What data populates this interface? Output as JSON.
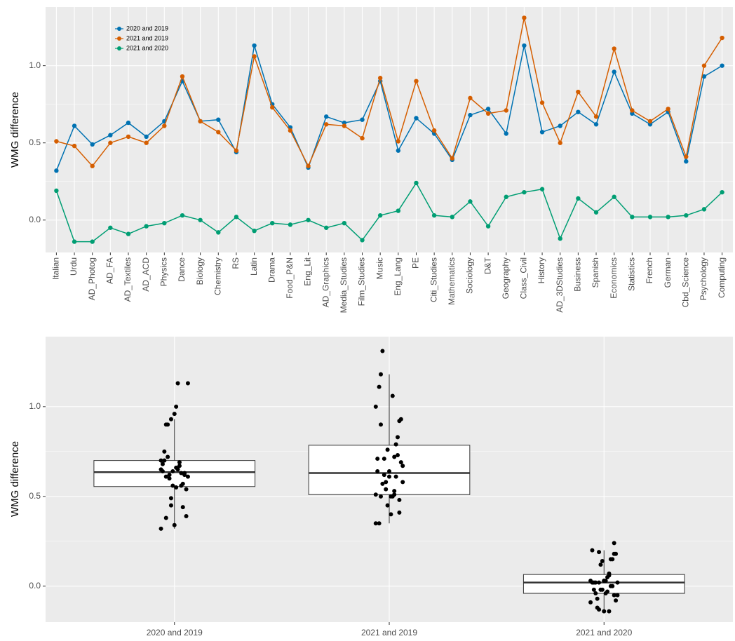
{
  "chart_data": [
    {
      "type": "line",
      "ylabel": "WMG difference",
      "categories": [
        "Italian",
        "Urdu",
        "AD_Photog",
        "AD_FA",
        "AD_Textiles",
        "AD_ACD",
        "Physics",
        "Dance",
        "Biology",
        "Chemistry",
        "RS",
        "Latin",
        "Drama",
        "Food_P&N",
        "Eng_Lit",
        "AD_Graphics",
        "Media_Studies",
        "Film_Studies",
        "Music",
        "Eng_Lang",
        "PE",
        "Citi_Studies",
        "Mathematics",
        "Sociology",
        "D&T",
        "Geography",
        "Class_Civil",
        "History",
        "AD_3DStudies",
        "Business",
        "Spanish",
        "Economics",
        "Statistics",
        "French",
        "German",
        "Cbd_Science",
        "Psychology",
        "Computing"
      ],
      "series": [
        {
          "name": "2020 and 2019",
          "color": "#0072B2",
          "values": [
            0.32,
            0.61,
            0.49,
            0.55,
            0.63,
            0.54,
            0.64,
            0.9,
            0.64,
            0.65,
            0.44,
            1.13,
            0.75,
            0.6,
            0.34,
            0.67,
            0.63,
            0.65,
            0.9,
            0.45,
            0.66,
            0.56,
            0.39,
            0.68,
            0.72,
            0.56,
            1.13,
            0.57,
            0.61,
            0.7,
            0.62,
            0.96,
            0.69,
            0.62,
            0.7,
            0.38,
            0.93,
            1.0
          ]
        },
        {
          "name": "2021 and 2019",
          "color": "#D55E00",
          "values": [
            0.51,
            0.48,
            0.35,
            0.5,
            0.54,
            0.5,
            0.61,
            0.93,
            0.64,
            0.57,
            0.45,
            1.06,
            0.73,
            0.58,
            0.35,
            0.62,
            0.61,
            0.53,
            0.92,
            0.51,
            0.9,
            0.58,
            0.4,
            0.79,
            0.69,
            0.71,
            1.31,
            0.76,
            0.5,
            0.83,
            0.67,
            1.11,
            0.71,
            0.64,
            0.72,
            0.41,
            1.0,
            1.18
          ]
        },
        {
          "name": "2021 and 2020",
          "color": "#009E73",
          "values": [
            0.19,
            -0.14,
            -0.14,
            -0.05,
            -0.09,
            -0.04,
            -0.02,
            0.03,
            0.0,
            -0.08,
            0.02,
            -0.07,
            -0.02,
            -0.03,
            0.0,
            -0.05,
            -0.02,
            -0.13,
            0.03,
            0.06,
            0.24,
            0.03,
            0.02,
            0.12,
            -0.04,
            0.15,
            0.18,
            0.2,
            -0.12,
            0.14,
            0.05,
            0.15,
            0.02,
            0.02,
            0.02,
            0.03,
            0.07,
            0.18
          ]
        }
      ],
      "ylim": [
        -0.21,
        1.38
      ],
      "yticks": [
        {
          "value": 0,
          "label": "0.0"
        },
        {
          "value": 0.5,
          "label": "0.5"
        },
        {
          "value": 1,
          "label": "1.0"
        }
      ],
      "grid": true,
      "legend": "upper left"
    },
    {
      "type": "box",
      "ylabel": "WMG difference",
      "boxes": [
        {
          "lower": 0.32,
          "q1": 0.555,
          "median": 0.635,
          "q3": 0.7,
          "upper": 0.93
        },
        {
          "lower": 0.35,
          "q1": 0.51,
          "median": 0.63,
          "q3": 0.785,
          "upper": 1.18
        },
        {
          "lower": -0.14,
          "q1": -0.04,
          "median": 0.02,
          "q3": 0.065,
          "upper": 0.2
        }
      ],
      "ylim": [
        -0.2,
        1.39
      ],
      "yticks": [
        {
          "value": 0,
          "label": "0.0"
        },
        {
          "value": 0.5,
          "label": "0.5"
        },
        {
          "value": 1,
          "label": "1.0"
        }
      ],
      "grid": true
    }
  ]
}
